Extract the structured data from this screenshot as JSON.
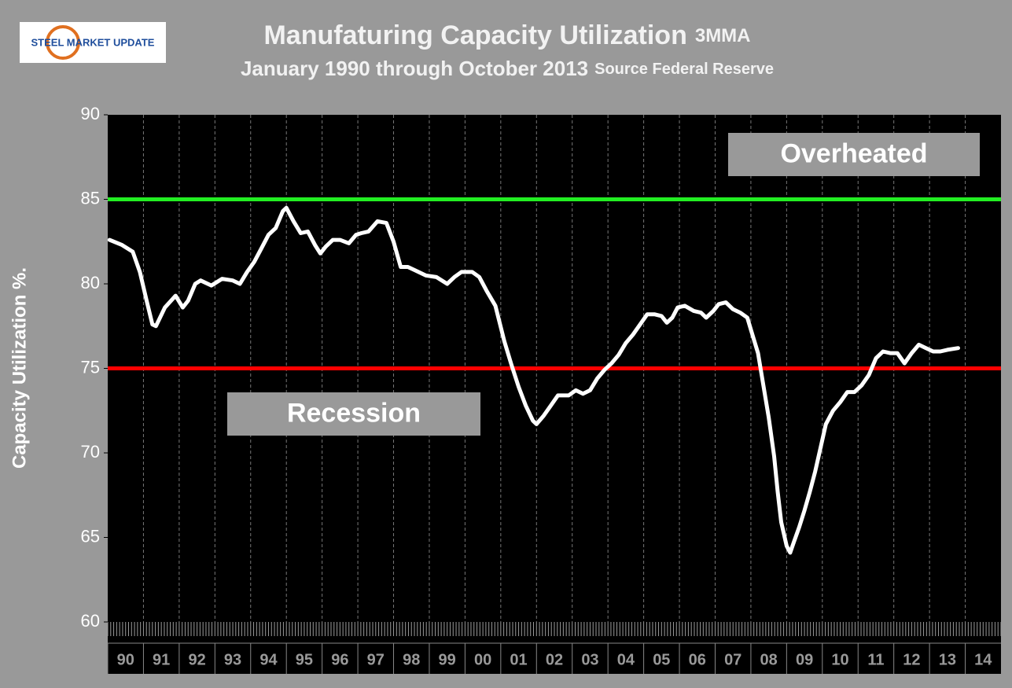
{
  "logo": "STEEL MARKET UPDATE",
  "chart_data": {
    "type": "line",
    "title": "Manufaturing Capacity Utilization",
    "title_note": "3MMA",
    "subtitle": "January 1990 through October 2013",
    "source": "Source Federal Reserve",
    "ylabel": "Capacity Utilization %.",
    "ylim": [
      60,
      90
    ],
    "yticks": [
      60,
      65,
      70,
      75,
      80,
      85,
      90
    ],
    "xlim": [
      1990,
      2015
    ],
    "xticks": [
      {
        "value": 1990,
        "label": "90"
      },
      {
        "value": 1991,
        "label": "91"
      },
      {
        "value": 1992,
        "label": "92"
      },
      {
        "value": 1993,
        "label": "93"
      },
      {
        "value": 1994,
        "label": "94"
      },
      {
        "value": 1995,
        "label": "95"
      },
      {
        "value": 1996,
        "label": "96"
      },
      {
        "value": 1997,
        "label": "97"
      },
      {
        "value": 1998,
        "label": "98"
      },
      {
        "value": 1999,
        "label": "99"
      },
      {
        "value": 2000,
        "label": "00"
      },
      {
        "value": 2001,
        "label": "01"
      },
      {
        "value": 2002,
        "label": "02"
      },
      {
        "value": 2003,
        "label": "03"
      },
      {
        "value": 2004,
        "label": "04"
      },
      {
        "value": 2005,
        "label": "05"
      },
      {
        "value": 2006,
        "label": "06"
      },
      {
        "value": 2007,
        "label": "07"
      },
      {
        "value": 2008,
        "label": "08"
      },
      {
        "value": 2009,
        "label": "09"
      },
      {
        "value": 2010,
        "label": "10"
      },
      {
        "value": 2011,
        "label": "11"
      },
      {
        "value": 2012,
        "label": "12"
      },
      {
        "value": 2013,
        "label": "13"
      },
      {
        "value": 2014,
        "label": "14"
      }
    ],
    "grid": true,
    "x": [
      1990.05,
      1990.4,
      1990.7,
      1990.9,
      1991.1,
      1991.25,
      1991.35,
      1991.6,
      1991.9,
      1992.1,
      1992.25,
      1992.45,
      1992.6,
      1992.9,
      1993.2,
      1993.5,
      1993.7,
      1993.9,
      1994.1,
      1994.3,
      1994.5,
      1994.7,
      1994.9,
      1995.0,
      1995.2,
      1995.4,
      1995.6,
      1995.8,
      1995.95,
      1996.1,
      1996.3,
      1996.5,
      1996.75,
      1996.95,
      1997.1,
      1997.3,
      1997.55,
      1997.8,
      1998.0,
      1998.2,
      1998.4,
      1998.6,
      1998.9,
      1999.2,
      1999.5,
      1999.7,
      1999.9,
      2000.2,
      2000.4,
      2000.6,
      2000.85,
      2001.1,
      2001.3,
      2001.5,
      2001.7,
      2001.9,
      2002.0,
      2002.2,
      2002.4,
      2002.6,
      2002.9,
      2003.1,
      2003.3,
      2003.5,
      2003.7,
      2003.9,
      2004.1,
      2004.3,
      2004.5,
      2004.7,
      2004.9,
      2005.1,
      2005.3,
      2005.5,
      2005.65,
      2005.8,
      2005.95,
      2006.15,
      2006.4,
      2006.6,
      2006.75,
      2006.95,
      2007.1,
      2007.3,
      2007.5,
      2007.7,
      2007.9,
      2008.0,
      2008.2,
      2008.35,
      2008.5,
      2008.65,
      2008.75,
      2008.85,
      2009.0,
      2009.1,
      2009.2,
      2009.35,
      2009.5,
      2009.65,
      2009.8,
      2009.95,
      2010.1,
      2010.3,
      2010.5,
      2010.7,
      2010.9,
      2011.1,
      2011.3,
      2011.5,
      2011.7,
      2011.9,
      2012.1,
      2012.3,
      2012.5,
      2012.7,
      2012.9,
      2013.1,
      2013.3,
      2013.5,
      2013.8
    ],
    "series": [
      {
        "color": "#ffffff",
        "values": [
          82.6,
          82.3,
          81.9,
          80.7,
          78.9,
          77.6,
          77.5,
          78.6,
          79.3,
          78.6,
          79.0,
          80.0,
          80.2,
          79.9,
          80.3,
          80.2,
          80.0,
          80.7,
          81.3,
          82.1,
          82.9,
          83.3,
          84.3,
          84.5,
          83.7,
          83.0,
          83.1,
          82.3,
          81.8,
          82.2,
          82.6,
          82.6,
          82.4,
          82.9,
          83.0,
          83.1,
          83.7,
          83.6,
          82.5,
          81.0,
          81.0,
          80.8,
          80.5,
          80.4,
          80.0,
          80.4,
          80.7,
          80.7,
          80.4,
          79.6,
          78.7,
          76.6,
          75.2,
          73.9,
          72.8,
          71.9,
          71.7,
          72.2,
          72.8,
          73.4,
          73.4,
          73.7,
          73.5,
          73.7,
          74.4,
          74.9,
          75.3,
          75.8,
          76.5,
          77.0,
          77.6,
          78.2,
          78.2,
          78.1,
          77.7,
          78.0,
          78.6,
          78.7,
          78.4,
          78.3,
          78.0,
          78.4,
          78.8,
          78.9,
          78.5,
          78.3,
          78.0,
          77.3,
          75.9,
          74.0,
          72.1,
          69.8,
          67.7,
          65.9,
          64.5,
          64.1,
          64.7,
          65.6,
          66.6,
          67.7,
          68.9,
          70.3,
          71.7,
          72.5,
          73.0,
          73.6,
          73.6,
          74.0,
          74.6,
          75.6,
          76.0,
          75.9,
          75.9,
          75.3,
          75.9,
          76.4,
          76.2,
          76.0,
          76.0,
          76.1,
          76.2
        ]
      }
    ],
    "reference_lines": [
      {
        "value": 85,
        "color": "#22ee22"
      },
      {
        "value": 75,
        "color": "#ff0000"
      }
    ],
    "annotations": [
      {
        "text": "Overheated"
      },
      {
        "text": "Recession"
      }
    ]
  }
}
